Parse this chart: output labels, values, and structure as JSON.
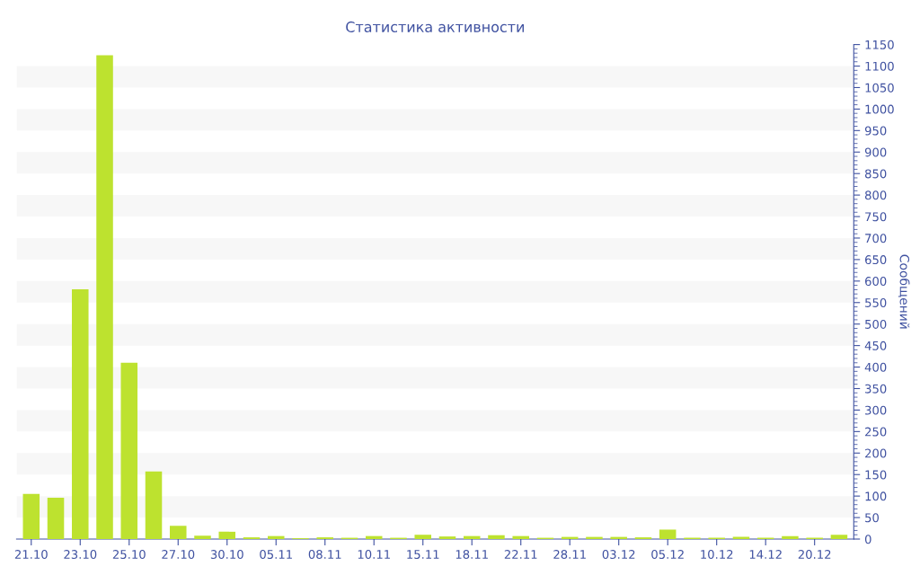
{
  "chart_data": {
    "type": "bar",
    "title": "Статистика активности",
    "y2label": "Сообщений",
    "categories": [
      "21.10",
      null,
      "23.10",
      null,
      "25.10",
      null,
      "27.10",
      null,
      "30.10",
      null,
      "05.11",
      null,
      "08.11",
      null,
      "10.11",
      null,
      "15.11",
      null,
      "18.11",
      null,
      "22.11",
      null,
      "28.11",
      null,
      "03.12",
      null,
      "05.12",
      null,
      "10.12",
      null,
      "14.12",
      null,
      "20.12",
      null
    ],
    "series": [
      {
        "color": "#bde22f",
        "axis": "y2",
        "values": [
          105,
          96,
          581,
          1125,
          410,
          157,
          31,
          8,
          17,
          4,
          7,
          2,
          4,
          3,
          7,
          3,
          10,
          6,
          7,
          9,
          7,
          3,
          5,
          5,
          5,
          4,
          22,
          3,
          3,
          5,
          3,
          7,
          3,
          10
        ]
      }
    ],
    "y2lim": [
      0,
      1150
    ],
    "y2ticks": [
      0,
      50,
      100,
      150,
      200,
      250,
      300,
      350,
      400,
      450,
      500,
      550,
      600,
      650,
      700,
      750,
      800,
      850,
      900,
      950,
      1000,
      1050,
      1100,
      1150
    ],
    "bands": [
      {
        "axis": "y2",
        "from": 50,
        "to": 100,
        "color": "#f7f7f7"
      },
      {
        "axis": "y2",
        "from": 150,
        "to": 200,
        "color": "#f7f7f7"
      },
      {
        "axis": "y2",
        "from": 250,
        "to": 300,
        "color": "#f7f7f7"
      },
      {
        "axis": "y2",
        "from": 350,
        "to": 400,
        "color": "#f7f7f7"
      },
      {
        "axis": "y2",
        "from": 450,
        "to": 500,
        "color": "#f7f7f7"
      },
      {
        "axis": "y2",
        "from": 550,
        "to": 600,
        "color": "#f7f7f7"
      },
      {
        "axis": "y2",
        "from": 650,
        "to": 700,
        "color": "#f7f7f7"
      },
      {
        "axis": "y2",
        "from": 750,
        "to": 800,
        "color": "#f7f7f7"
      },
      {
        "axis": "y2",
        "from": 850,
        "to": 900,
        "color": "#f7f7f7"
      },
      {
        "axis": "y2",
        "from": 950,
        "to": 1000,
        "color": "#f7f7f7"
      },
      {
        "axis": "y2",
        "from": 1050,
        "to": 1100,
        "color": "#f7f7f7"
      }
    ]
  }
}
